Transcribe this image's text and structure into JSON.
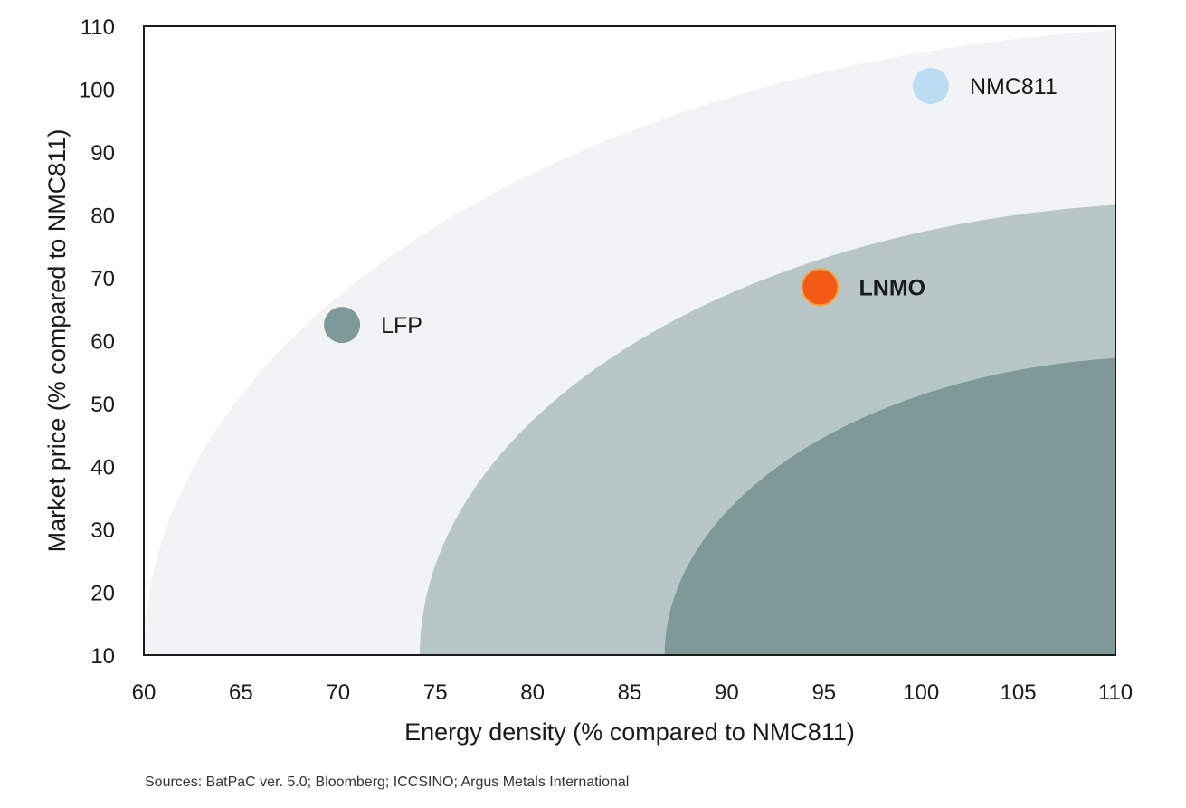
{
  "chart_data": {
    "type": "scatter",
    "xlabel": "Energy density (% compared to NMC811)",
    "ylabel": "Market price (% compared to NMC811)",
    "xlim": [
      60,
      110
    ],
    "ylim": [
      10,
      110
    ],
    "x_ticks": [
      "60",
      "65",
      "70",
      "75",
      "80",
      "85",
      "90",
      "95",
      "100",
      "105",
      "110"
    ],
    "y_ticks": [
      "10",
      "20",
      "30",
      "40",
      "50",
      "60",
      "70",
      "80",
      "90",
      "100",
      "110"
    ],
    "points": [
      {
        "name": "LFP",
        "x": 70.2,
        "y": 62.5,
        "color": "#7f9898",
        "bold": false
      },
      {
        "name": "LNMO",
        "x": 94.8,
        "y": 68.5,
        "color": "#f25a15",
        "bold": true
      },
      {
        "name": "NMC811",
        "x": 100.5,
        "y": 100.5,
        "color": "#bcdcf2",
        "bold": false
      }
    ],
    "regions": [
      {
        "name": "outer-zone",
        "start_x": 60,
        "top_y": 110,
        "color": "#f2f3f4"
      },
      {
        "name": "middle-zone",
        "start_x": 74.2,
        "top_y": 82,
        "color": "#b7c7c7"
      },
      {
        "name": "inner-zone",
        "start_x": 86.8,
        "top_y": 57.5,
        "color": "#7f9898"
      }
    ],
    "grid": false
  },
  "footer": {
    "sources": "Sources: BatPaC ver. 5.0; Bloomberg; ICCSINO; Argus Metals International"
  }
}
